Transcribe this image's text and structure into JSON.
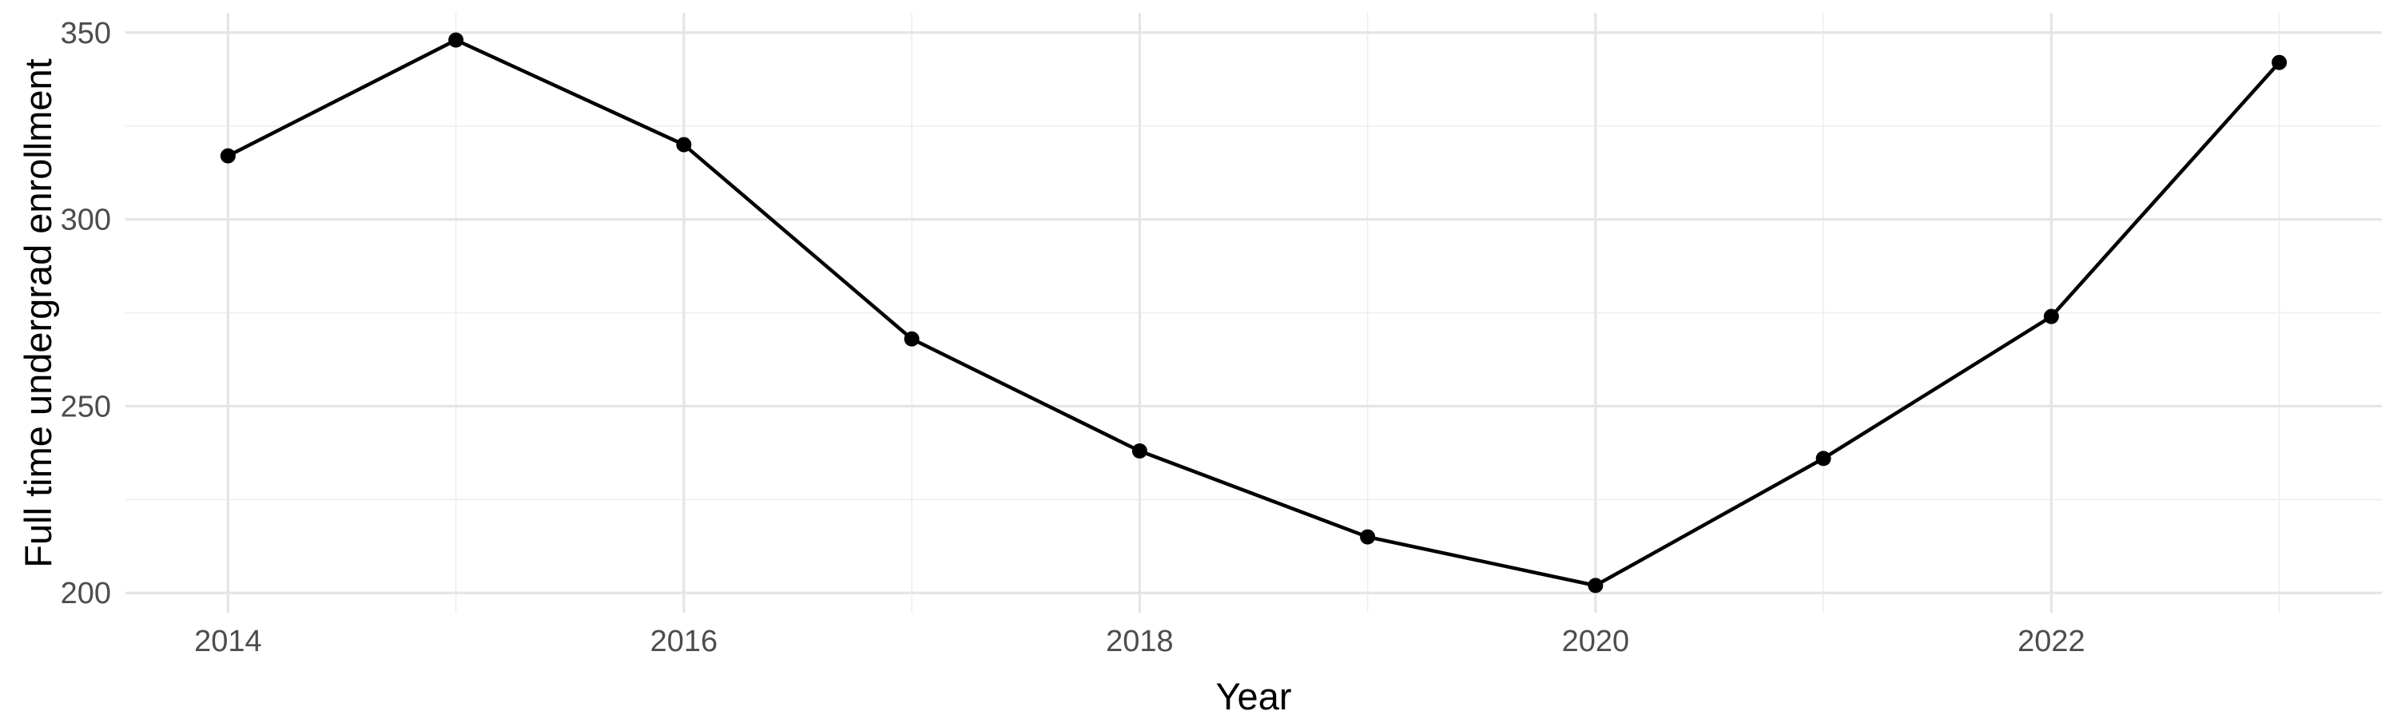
{
  "chart_data": {
    "type": "line",
    "title": "",
    "xlabel": "Year",
    "ylabel": "Full time undergrad enrollment",
    "x": [
      2014,
      2015,
      2016,
      2017,
      2018,
      2019,
      2020,
      2021,
      2022,
      2023
    ],
    "series": [
      {
        "name": "Full time undergrad enrollment",
        "values": [
          317,
          348,
          320,
          268,
          238,
          215,
          202,
          236,
          274,
          342
        ]
      }
    ],
    "x_tick_labels": [
      "2014",
      "2016",
      "2018",
      "2020",
      "2022"
    ],
    "x_major_breaks": [
      2014,
      2016,
      2018,
      2020,
      2022
    ],
    "x_minor_breaks": [
      2015,
      2017,
      2019,
      2021,
      2023
    ],
    "y_tick_labels": [
      "200",
      "250",
      "300",
      "350"
    ],
    "y_major_breaks": [
      200,
      250,
      300,
      350
    ],
    "y_minor_breaks": [
      225,
      275,
      325
    ],
    "xlim": [
      2013.55,
      2023.45
    ],
    "ylim": [
      194.7,
      355.3
    ],
    "grid": "on",
    "legend": "none",
    "style": {
      "background": "#ffffff",
      "line_color": "#000000",
      "point_color": "#000000",
      "grid_major_color": "#e5e5e5",
      "grid_minor_color": "#eeeeee",
      "tick_label_color": "#4d4d4d",
      "axis_title_color": "#000000"
    }
  }
}
